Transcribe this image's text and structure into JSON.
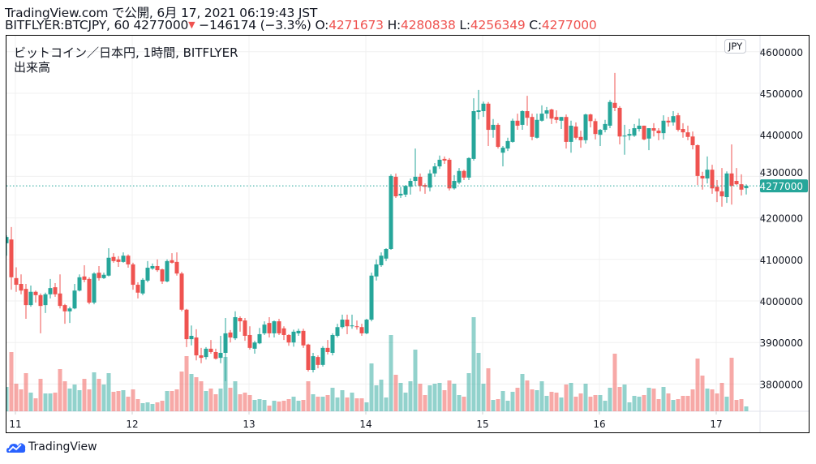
{
  "header": {
    "line1": "TradingView.com で公開, 6月 17, 2021 06:19:43 JST",
    "symbol": "BITFLYER:BTCJPY, 60",
    "last": "4277000",
    "change": "−146174 (−3.3%)",
    "o_label": "O:",
    "o": "4271673",
    "h_label": "H:",
    "h": "4280838",
    "l_label": "L:",
    "l": "4256349",
    "c_label": "C:",
    "c": "4277000"
  },
  "legend": {
    "title": "ビットコイン／日本円, 1時間, BITFLYER",
    "volume": "出来高"
  },
  "currency_badge": "JPY",
  "footer": {
    "logo_text": "TradingView",
    "icon": "tradingview-cloud-logo"
  },
  "colors": {
    "up": "#26a69a",
    "down": "#ef5350",
    "grid": "#f0f0f0"
  },
  "chart_data": {
    "type": "candlestick",
    "interval": "60",
    "x_ticks": [
      "11",
      "12",
      "13",
      "14",
      "15",
      "16",
      "17"
    ],
    "y_ticks": [
      "3800000",
      "3900000",
      "4000000",
      "4100000",
      "4200000",
      "4300000",
      "4400000",
      "4500000",
      "4600000"
    ],
    "ylim": [
      3720000,
      4620000
    ],
    "grid": true,
    "last_price": 4277000,
    "last_price_label": "4277000",
    "volume_note": "relative",
    "candles_ohlc": [
      [
        4139000,
        4158000,
        4109000,
        4154000
      ],
      [
        4148000,
        4178000,
        4027000,
        4057000
      ],
      [
        4055000,
        4081000,
        4022000,
        4039000
      ],
      [
        4041000,
        4064000,
        4016000,
        4025000
      ],
      [
        4029000,
        4041000,
        3957000,
        3990000
      ],
      [
        3990000,
        4037000,
        3986000,
        4022000
      ],
      [
        4022000,
        4025000,
        3996000,
        4014000
      ],
      [
        4014000,
        4018000,
        3922000,
        3988000
      ],
      [
        3990000,
        4020000,
        3971000,
        4016000
      ],
      [
        4016000,
        4053000,
        4006000,
        4031000
      ],
      [
        4033000,
        4043000,
        4010000,
        4016000
      ],
      [
        4018000,
        4064000,
        3982000,
        3988000
      ],
      [
        3990000,
        3993000,
        3945000,
        3975000
      ],
      [
        3975000,
        3986000,
        3947000,
        3982000
      ],
      [
        3982000,
        4041000,
        3980000,
        4025000
      ],
      [
        4025000,
        4064000,
        4023000,
        4057000
      ],
      [
        4059000,
        4086000,
        4045000,
        4051000
      ],
      [
        4053000,
        4057000,
        3992000,
        3996000
      ],
      [
        3996000,
        4069000,
        3992000,
        4066000
      ],
      [
        4068000,
        4084000,
        4049000,
        4055000
      ],
      [
        4055000,
        4068000,
        4053000,
        4063000
      ],
      [
        4061000,
        4127000,
        4059000,
        4104000
      ],
      [
        4106000,
        4115000,
        4092000,
        4096000
      ],
      [
        4100000,
        4108000,
        4082000,
        4094000
      ],
      [
        4094000,
        4117000,
        4092000,
        4109000
      ],
      [
        4109000,
        4112000,
        4080000,
        4088000
      ],
      [
        4088000,
        4092000,
        4027000,
        4039000
      ],
      [
        4039000,
        4045000,
        4006000,
        4020000
      ],
      [
        4018000,
        4055000,
        4014000,
        4051000
      ],
      [
        4049000,
        4096000,
        4045000,
        4080000
      ],
      [
        4078000,
        4090000,
        4075000,
        4084000
      ],
      [
        4084000,
        4100000,
        4070000,
        4074000
      ],
      [
        4076000,
        4078000,
        4041000,
        4047000
      ],
      [
        4047000,
        4100000,
        4045000,
        4096000
      ],
      [
        4098000,
        4115000,
        4090000,
        4092000
      ],
      [
        4094000,
        4117000,
        4061000,
        4066000
      ],
      [
        4066000,
        4070000,
        3975000,
        3979000
      ],
      [
        3979000,
        3981000,
        3889000,
        3908000
      ],
      [
        3908000,
        3941000,
        3893000,
        3916000
      ],
      [
        3912000,
        3932000,
        3857000,
        3869000
      ],
      [
        3869000,
        3887000,
        3850000,
        3863000
      ],
      [
        3865000,
        3889000,
        3859000,
        3885000
      ],
      [
        3885000,
        3906000,
        3873000,
        3877000
      ],
      [
        3877000,
        3885000,
        3859000,
        3861000
      ],
      [
        3863000,
        3916000,
        3850000,
        3875000
      ],
      [
        3875000,
        3959000,
        3807000,
        3922000
      ],
      [
        3924000,
        3930000,
        3900000,
        3912000
      ],
      [
        3910000,
        3975000,
        3906000,
        3961000
      ],
      [
        3959000,
        3963000,
        3926000,
        3951000
      ],
      [
        3953000,
        3959000,
        3904000,
        3916000
      ],
      [
        3918000,
        3939000,
        3883000,
        3887000
      ],
      [
        3885000,
        3904000,
        3873000,
        3900000
      ],
      [
        3898000,
        3935000,
        3896000,
        3920000
      ],
      [
        3922000,
        3951000,
        3918000,
        3943000
      ],
      [
        3947000,
        3961000,
        3912000,
        3922000
      ],
      [
        3922000,
        3953000,
        3912000,
        3951000
      ],
      [
        3951000,
        3957000,
        3918000,
        3922000
      ],
      [
        3934000,
        3939000,
        3906000,
        3918000
      ],
      [
        3918000,
        3920000,
        3892000,
        3900000
      ],
      [
        3900000,
        3931000,
        3890000,
        3926000
      ],
      [
        3922000,
        3933000,
        3916000,
        3928000
      ],
      [
        3928000,
        3933000,
        3887000,
        3893000
      ],
      [
        3895000,
        3897000,
        3830000,
        3834000
      ],
      [
        3834000,
        3875000,
        3828000,
        3867000
      ],
      [
        3865000,
        3869000,
        3838000,
        3846000
      ],
      [
        3846000,
        3891000,
        3842000,
        3887000
      ],
      [
        3887000,
        3906000,
        3871000,
        3877000
      ],
      [
        3875000,
        3922000,
        3869000,
        3918000
      ],
      [
        3916000,
        3945000,
        3912000,
        3937000
      ],
      [
        3937000,
        3967000,
        3933000,
        3955000
      ],
      [
        3955000,
        3967000,
        3920000,
        3939000
      ],
      [
        3939000,
        3967000,
        3933000,
        3941000
      ],
      [
        3939000,
        3953000,
        3931000,
        3937000
      ],
      [
        3937000,
        3945000,
        3916000,
        3922000
      ],
      [
        3922000,
        3957000,
        3920000,
        3955000
      ],
      [
        3955000,
        4068000,
        3951000,
        4061000
      ],
      [
        4059000,
        4100000,
        4049000,
        4088000
      ],
      [
        4086000,
        4117000,
        4082000,
        4109000
      ],
      [
        4102000,
        4127000,
        4096000,
        4125000
      ],
      [
        4125000,
        4305000,
        4123000,
        4301000
      ],
      [
        4299000,
        4307000,
        4248000,
        4252000
      ],
      [
        4254000,
        4275000,
        4248000,
        4258000
      ],
      [
        4256000,
        4279000,
        4250000,
        4277000
      ],
      [
        4275000,
        4295000,
        4256000,
        4289000
      ],
      [
        4289000,
        4367000,
        4277000,
        4299000
      ],
      [
        4299000,
        4307000,
        4264000,
        4277000
      ],
      [
        4279000,
        4283000,
        4258000,
        4275000
      ],
      [
        4273000,
        4316000,
        4264000,
        4307000
      ],
      [
        4307000,
        4332000,
        4299000,
        4324000
      ],
      [
        4324000,
        4350000,
        4318000,
        4340000
      ],
      [
        4342000,
        4348000,
        4330000,
        4338000
      ],
      [
        4340000,
        4344000,
        4266000,
        4271000
      ],
      [
        4271000,
        4303000,
        4268000,
        4289000
      ],
      [
        4285000,
        4320000,
        4281000,
        4313000
      ],
      [
        4313000,
        4316000,
        4291000,
        4297000
      ],
      [
        4297000,
        4346000,
        4291000,
        4344000
      ],
      [
        4342000,
        4488000,
        4338000,
        4457000
      ],
      [
        4455000,
        4508000,
        4437000,
        4459000
      ],
      [
        4457000,
        4480000,
        4443000,
        4475000
      ],
      [
        4475000,
        4479000,
        4373000,
        4412000
      ],
      [
        4412000,
        4438000,
        4393000,
        4424000
      ],
      [
        4424000,
        4428000,
        4367000,
        4371000
      ],
      [
        4357000,
        4373000,
        4324000,
        4369000
      ],
      [
        4367000,
        4393000,
        4361000,
        4385000
      ],
      [
        4383000,
        4439000,
        4381000,
        4434000
      ],
      [
        4434000,
        4451000,
        4412000,
        4422000
      ],
      [
        4424000,
        4459000,
        4412000,
        4457000
      ],
      [
        4457000,
        4494000,
        4422000,
        4441000
      ],
      [
        4443000,
        4451000,
        4387000,
        4395000
      ],
      [
        4393000,
        4451000,
        4391000,
        4436000
      ],
      [
        4434000,
        4471000,
        4432000,
        4451000
      ],
      [
        4451000,
        4467000,
        4439000,
        4459000
      ],
      [
        4461000,
        4463000,
        4426000,
        4439000
      ],
      [
        4443000,
        4459000,
        4428000,
        4436000
      ],
      [
        4434000,
        4443000,
        4414000,
        4443000
      ],
      [
        4443000,
        4449000,
        4367000,
        4383000
      ],
      [
        4383000,
        4434000,
        4357000,
        4422000
      ],
      [
        4420000,
        4430000,
        4389000,
        4393000
      ],
      [
        4395000,
        4410000,
        4369000,
        4387000
      ],
      [
        4387000,
        4451000,
        4379000,
        4449000
      ],
      [
        4449000,
        4451000,
        4418000,
        4433000
      ],
      [
        4433000,
        4439000,
        4389000,
        4402000
      ],
      [
        4400000,
        4414000,
        4373000,
        4412000
      ],
      [
        4412000,
        4436000,
        4406000,
        4426000
      ],
      [
        4422000,
        4484000,
        4416000,
        4479000
      ],
      [
        4477000,
        4549000,
        4457000,
        4465000
      ],
      [
        4465000,
        4469000,
        4377000,
        4396000
      ],
      [
        4396000,
        4424000,
        4352000,
        4398000
      ],
      [
        4398000,
        4414000,
        4387000,
        4402000
      ],
      [
        4398000,
        4426000,
        4395000,
        4416000
      ],
      [
        4414000,
        4439000,
        4408000,
        4422000
      ],
      [
        4422000,
        4422000,
        4387000,
        4389000
      ],
      [
        4391000,
        4416000,
        4363000,
        4416000
      ],
      [
        4416000,
        4428000,
        4396000,
        4410000
      ],
      [
        4410000,
        4416000,
        4387000,
        4404000
      ],
      [
        4404000,
        4447000,
        4389000,
        4434000
      ],
      [
        4434000,
        4443000,
        4420000,
        4430000
      ],
      [
        4430000,
        4457000,
        4422000,
        4445000
      ],
      [
        4447000,
        4453000,
        4408000,
        4412000
      ],
      [
        4414000,
        4428000,
        4393000,
        4406000
      ],
      [
        4406000,
        4422000,
        4387000,
        4395000
      ],
      [
        4396000,
        4408000,
        4365000,
        4375000
      ],
      [
        4375000,
        4377000,
        4279000,
        4301000
      ],
      [
        4301000,
        4311000,
        4268000,
        4295000
      ],
      [
        4295000,
        4348000,
        4283000,
        4316000
      ],
      [
        4316000,
        4328000,
        4258000,
        4271000
      ],
      [
        4275000,
        4291000,
        4238000,
        4264000
      ],
      [
        4264000,
        4320000,
        4227000,
        4252000
      ],
      [
        4250000,
        4312000,
        4236000,
        4307000
      ],
      [
        4307000,
        4377000,
        4232000,
        4277000
      ],
      [
        4289000,
        4320000,
        4279000,
        4281000
      ],
      [
        4281000,
        4305000,
        4254000,
        4268000
      ],
      [
        4271673,
        4280838,
        4256349,
        4277000
      ]
    ],
    "volume": [
      30,
      73,
      34,
      27,
      47,
      23,
      16,
      40,
      22,
      22,
      23,
      52,
      37,
      28,
      33,
      26,
      40,
      27,
      48,
      40,
      33,
      47,
      24,
      25,
      26,
      18,
      27,
      15,
      10,
      11,
      9,
      11,
      13,
      25,
      25,
      27,
      49,
      68,
      46,
      42,
      37,
      25,
      28,
      21,
      28,
      67,
      29,
      37,
      21,
      23,
      20,
      14,
      15,
      14,
      7,
      13,
      12,
      13,
      15,
      18,
      13,
      14,
      37,
      21,
      18,
      18,
      20,
      29,
      17,
      26,
      17,
      23,
      16,
      16,
      11,
      59,
      32,
      39,
      17,
      94,
      45,
      35,
      23,
      37,
      76,
      34,
      20,
      32,
      34,
      35,
      26,
      38,
      34,
      20,
      18,
      47,
      116,
      72,
      34,
      53,
      14,
      15,
      25,
      13,
      24,
      29,
      46,
      38,
      27,
      26,
      37,
      19,
      24,
      23,
      17,
      33,
      35,
      18,
      22,
      34,
      18,
      20,
      20,
      13,
      29,
      71,
      30,
      33,
      11,
      19,
      18,
      20,
      29,
      28,
      15,
      30,
      22,
      14,
      15,
      19,
      19,
      27,
      65,
      44,
      28,
      27,
      22,
      35,
      18,
      66,
      14,
      15,
      6
    ]
  }
}
